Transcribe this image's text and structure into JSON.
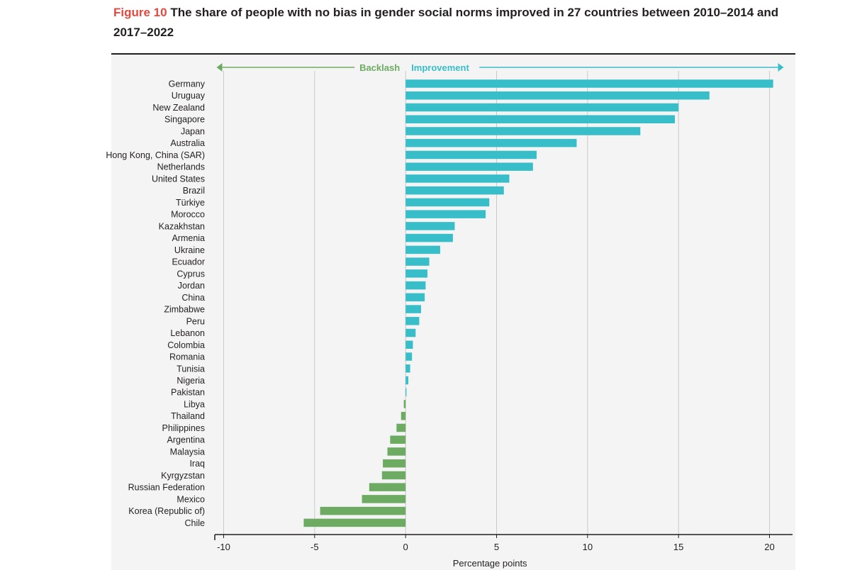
{
  "header": {
    "figure_label": "Figure 10",
    "title": "The share of people with no bias in gender social norms improved in 27 countries between 2010–2014 and 2017–2022"
  },
  "legend": {
    "backlash": "Backlash",
    "improvement": "Improvement"
  },
  "colors": {
    "improvement": "#38bec9",
    "backlash": "#6eab62",
    "title_accent": "#e8473d"
  },
  "chart_data": {
    "type": "bar",
    "orientation": "horizontal",
    "title": "The share of people with no bias in gender social norms improved in 27 countries between 2010–2014 and 2017–2022",
    "xlabel": "Percentage points",
    "ylabel": "",
    "xlim": [
      -10,
      20
    ],
    "xticks": [
      -10,
      -5,
      0,
      5,
      10,
      15,
      20
    ],
    "grid": true,
    "categories": [
      "Germany",
      "Uruguay",
      "New Zealand",
      "Singapore",
      "Japan",
      "Australia",
      "Hong Kong, China (SAR)",
      "Netherlands",
      "United States",
      "Brazil",
      "Türkiye",
      "Morocco",
      "Kazakhstan",
      "Armenia",
      "Ukraine",
      "Ecuador",
      "Cyprus",
      "Jordan",
      "China",
      "Zimbabwe",
      "Peru",
      "Lebanon",
      "Colombia",
      "Romania",
      "Tunisia",
      "Nigeria",
      "Pakistan",
      "Libya",
      "Thailand",
      "Philippines",
      "Argentina",
      "Malaysia",
      "Iraq",
      "Kyrgyzstan",
      "Russian Federation",
      "Mexico",
      "Korea (Republic of)",
      "Chile"
    ],
    "values": [
      20.2,
      16.7,
      15.0,
      14.8,
      12.9,
      9.4,
      7.2,
      7.0,
      5.7,
      5.4,
      4.6,
      4.4,
      2.7,
      2.6,
      1.9,
      1.3,
      1.2,
      1.1,
      1.05,
      0.85,
      0.75,
      0.55,
      0.4,
      0.35,
      0.25,
      0.15,
      0.05,
      -0.1,
      -0.25,
      -0.5,
      -0.85,
      -1.0,
      -1.25,
      -1.3,
      -2.0,
      -2.4,
      -4.7,
      -5.6
    ]
  }
}
